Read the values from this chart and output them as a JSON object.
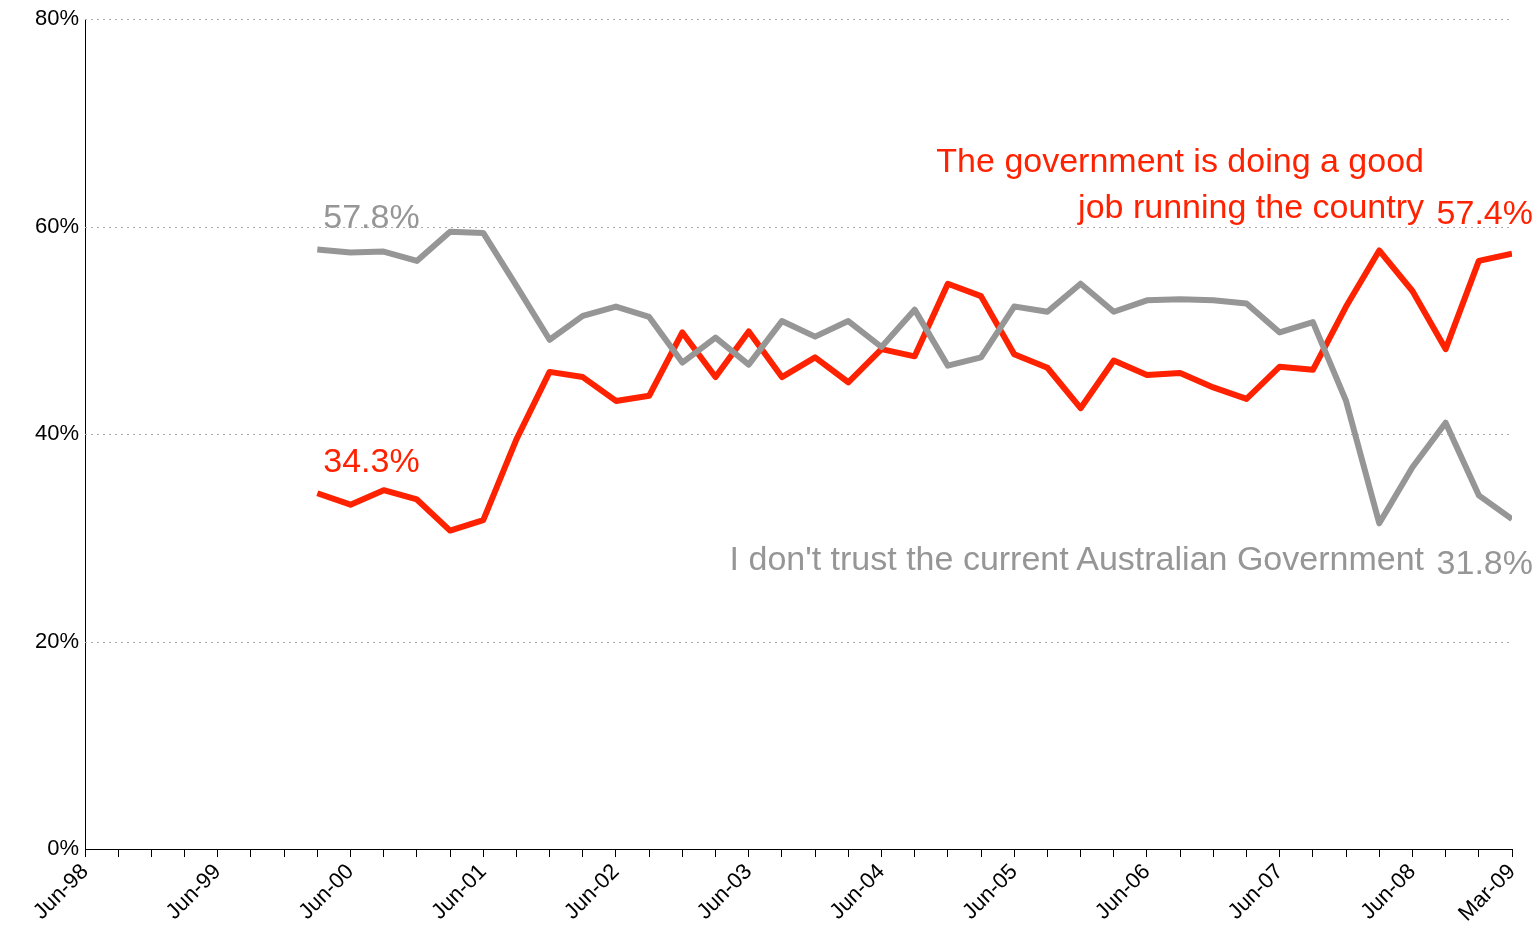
{
  "chart_data": {
    "type": "line",
    "x": [
      "2000-03",
      "2000-06",
      "2000-09",
      "2000-12",
      "2001-03",
      "2001-06",
      "2001-09",
      "2001-12",
      "2002-03",
      "2002-06",
      "2002-09",
      "2002-12",
      "2003-03",
      "2003-06",
      "2003-09",
      "2003-12",
      "2004-03",
      "2004-06",
      "2004-09",
      "2004-12",
      "2005-03",
      "2005-06",
      "2005-09",
      "2005-12",
      "2006-03",
      "2006-06",
      "2006-09",
      "2006-12",
      "2007-03",
      "2007-06",
      "2007-09",
      "2007-12",
      "2008-03",
      "2008-06",
      "2008-09",
      "2008-12",
      "2009-03"
    ],
    "series": [
      {
        "name": "I don't trust the current Australian Government",
        "color": "#969696",
        "values": [
          57.8,
          57.5,
          57.6,
          56.7,
          59.5,
          59.4,
          54.3,
          49.1,
          51.4,
          52.3,
          51.3,
          46.9,
          49.3,
          46.7,
          50.9,
          49.4,
          50.9,
          48.4,
          52.0,
          46.6,
          47.4,
          52.3,
          51.8,
          54.5,
          51.8,
          52.9,
          53.0,
          52.9,
          52.6,
          49.8,
          50.8,
          43.2,
          31.4,
          36.8,
          41.1,
          34.1,
          31.8
        ],
        "value_labels": [
          "57.8%",
          null,
          null,
          null,
          null,
          null,
          null,
          null,
          null,
          null,
          null,
          null,
          null,
          null,
          null,
          null,
          null,
          null,
          null,
          null,
          null,
          null,
          null,
          null,
          null,
          null,
          null,
          null,
          null,
          null,
          null,
          null,
          null,
          null,
          null,
          null,
          "31.8%"
        ]
      },
      {
        "name": "The government is doing a good\njob running the country",
        "color": "#ff2200",
        "values": [
          34.3,
          33.2,
          34.6,
          33.7,
          30.7,
          31.7,
          39.5,
          46.0,
          45.5,
          43.2,
          43.7,
          49.8,
          45.5,
          49.9,
          45.5,
          47.4,
          45.0,
          48.2,
          47.5,
          54.5,
          53.3,
          47.7,
          46.4,
          42.5,
          47.1,
          45.7,
          45.9,
          44.5,
          43.4,
          46.5,
          46.2,
          52.3,
          57.7,
          53.8,
          48.2,
          56.7,
          57.4
        ],
        "value_labels": [
          "34.3%",
          null,
          null,
          null,
          null,
          null,
          null,
          null,
          null,
          null,
          null,
          null,
          null,
          null,
          null,
          null,
          null,
          null,
          null,
          null,
          null,
          null,
          null,
          null,
          null,
          null,
          null,
          null,
          null,
          null,
          null,
          null,
          null,
          null,
          null,
          null,
          "57.4%"
        ]
      }
    ],
    "xlim": [
      "1998-06",
      "2009-03"
    ],
    "xticks": [
      {
        "value": "1998-06",
        "label": "Jun-98"
      },
      {
        "value": "1998-09",
        "label": null
      },
      {
        "value": "1998-12",
        "label": null
      },
      {
        "value": "1999-03",
        "label": null
      },
      {
        "value": "1999-06",
        "label": "Jun-99"
      },
      {
        "value": "1999-09",
        "label": null
      },
      {
        "value": "1999-12",
        "label": null
      },
      {
        "value": "2000-03",
        "label": null
      },
      {
        "value": "2000-06",
        "label": "Jun-00"
      },
      {
        "value": "2000-09",
        "label": null
      },
      {
        "value": "2000-12",
        "label": null
      },
      {
        "value": "2001-03",
        "label": null
      },
      {
        "value": "2001-06",
        "label": "Jun-01"
      },
      {
        "value": "2001-09",
        "label": null
      },
      {
        "value": "2001-12",
        "label": null
      },
      {
        "value": "2002-03",
        "label": null
      },
      {
        "value": "2002-06",
        "label": "Jun-02"
      },
      {
        "value": "2002-09",
        "label": null
      },
      {
        "value": "2002-12",
        "label": null
      },
      {
        "value": "2003-03",
        "label": null
      },
      {
        "value": "2003-06",
        "label": "Jun-03"
      },
      {
        "value": "2003-09",
        "label": null
      },
      {
        "value": "2003-12",
        "label": null
      },
      {
        "value": "2004-03",
        "label": null
      },
      {
        "value": "2004-06",
        "label": "Jun-04"
      },
      {
        "value": "2004-09",
        "label": null
      },
      {
        "value": "2004-12",
        "label": null
      },
      {
        "value": "2005-03",
        "label": null
      },
      {
        "value": "2005-06",
        "label": "Jun-05"
      },
      {
        "value": "2005-09",
        "label": null
      },
      {
        "value": "2005-12",
        "label": null
      },
      {
        "value": "2006-03",
        "label": null
      },
      {
        "value": "2006-06",
        "label": "Jun-06"
      },
      {
        "value": "2006-09",
        "label": null
      },
      {
        "value": "2006-12",
        "label": null
      },
      {
        "value": "2007-03",
        "label": null
      },
      {
        "value": "2007-06",
        "label": "Jun-07"
      },
      {
        "value": "2007-09",
        "label": null
      },
      {
        "value": "2007-12",
        "label": null
      },
      {
        "value": "2008-03",
        "label": null
      },
      {
        "value": "2008-06",
        "label": "Jun-08"
      },
      {
        "value": "2008-09",
        "label": null
      },
      {
        "value": "2008-12",
        "label": null
      },
      {
        "value": "2009-03",
        "label": "Mar-09"
      }
    ],
    "ylim": [
      0,
      80
    ],
    "yticks": [
      {
        "value": 0,
        "label": "0%"
      },
      {
        "value": 20,
        "label": "20%"
      },
      {
        "value": 40,
        "label": "40%"
      },
      {
        "value": 60,
        "label": "60%"
      },
      {
        "value": 80,
        "label": "80%"
      }
    ],
    "grid": "y",
    "legend": false,
    "marker": "none",
    "line_style": "solid"
  }
}
